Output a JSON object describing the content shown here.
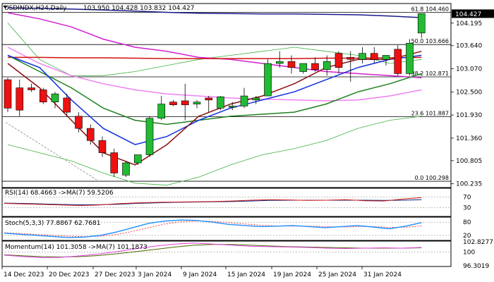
{
  "header": {
    "symbol": "USDINDX,H24,Daily",
    "ohlc": "103.950 104.428 103.832 104.427"
  },
  "price_scale": {
    "ticks": [
      "104.195",
      "103.640",
      "103.070",
      "102.500",
      "101.930",
      "101.360",
      "100.805",
      "100.235"
    ],
    "current_price": "104.427"
  },
  "fib_levels": [
    {
      "label": "61.8 104.460",
      "value": 104.46
    },
    {
      "label": "50.0 103.666",
      "value": 103.666
    },
    {
      "label": "38.2 102.871",
      "value": 102.871
    },
    {
      "label": "23.6 101.887",
      "value": 101.887
    },
    {
      "label": "0.0 100.298",
      "value": 100.298
    }
  ],
  "rsi": {
    "title": "RSI(14) 68.4663 ->MA(7) 59.5206",
    "ticks": [
      "70",
      "30"
    ],
    "color_rsi": "#d01818",
    "color_ma": "#0a2a80"
  },
  "stoch": {
    "title": "Stoch(5,3,3) 77.8867 62.7681",
    "ticks": [
      "80",
      "20"
    ],
    "color_k": "#1e90ff",
    "color_d": "#ff4040"
  },
  "momentum": {
    "title": "Momentum(14) 101.3058 ->MA(7) 101.1873",
    "ticks": [
      "102.8277",
      "100",
      "96.3019"
    ],
    "color_mom": "#e040e0",
    "color_ma": "#4a6a00"
  },
  "x_labels": [
    "14 Dec 2023",
    "20 Dec 2023",
    "27 Dec 2023",
    "3 Jan 2024",
    "9 Jan 2024",
    "15 Jan 2024",
    "19 Jan 2024",
    "25 Jan 2024",
    "31 Jan 2024"
  ],
  "colors": {
    "bull": "#22bb33",
    "bear": "#ee1111",
    "navy": "#1a1a8c",
    "magenta": "#d020d0",
    "red_ma": "#d01010",
    "darkred": "#8b1010",
    "blue": "#1030e0",
    "green": "#208020",
    "pink": "#f080f0",
    "bb_green": "#40b040"
  },
  "chart_data": {
    "type": "candlestick",
    "title": "USDINDX,H24,Daily",
    "ylim": [
      100.16,
      104.66
    ],
    "dates": [
      "12-13",
      "12-14",
      "12-15",
      "12-18",
      "12-19",
      "12-20",
      "12-21",
      "12-22",
      "12-26",
      "12-27",
      "12-28",
      "12-29",
      "01-02",
      "01-03",
      "01-04",
      "01-05",
      "01-08",
      "01-09",
      "01-10",
      "01-11",
      "01-12",
      "01-15",
      "01-16",
      "01-17",
      "01-18",
      "01-19",
      "01-22",
      "01-23",
      "01-24",
      "01-25",
      "01-26",
      "01-29",
      "01-30",
      "01-31",
      "02-01",
      "02-02"
    ],
    "candles": [
      {
        "o": 102.8,
        "h": 102.85,
        "l": 102.0,
        "c": 102.1
      },
      {
        "o": 102.6,
        "h": 102.8,
        "l": 101.9,
        "c": 102.05
      },
      {
        "o": 102.6,
        "h": 102.7,
        "l": 102.5,
        "c": 102.55
      },
      {
        "o": 102.55,
        "h": 102.6,
        "l": 102.2,
        "c": 102.25
      },
      {
        "o": 102.25,
        "h": 102.5,
        "l": 102.1,
        "c": 102.45
      },
      {
        "o": 102.35,
        "h": 102.45,
        "l": 101.9,
        "c": 102.0
      },
      {
        "o": 101.9,
        "h": 102.0,
        "l": 101.5,
        "c": 101.6
      },
      {
        "o": 101.6,
        "h": 101.7,
        "l": 101.2,
        "c": 101.3
      },
      {
        "o": 101.3,
        "h": 101.4,
        "l": 100.9,
        "c": 101.0
      },
      {
        "o": 101.0,
        "h": 101.1,
        "l": 100.4,
        "c": 100.5
      },
      {
        "o": 100.45,
        "h": 100.8,
        "l": 100.4,
        "c": 100.75
      },
      {
        "o": 100.75,
        "h": 100.95,
        "l": 100.7,
        "c": 100.95
      },
      {
        "o": 100.95,
        "h": 101.9,
        "l": 100.9,
        "c": 101.85
      },
      {
        "o": 101.85,
        "h": 102.4,
        "l": 101.8,
        "c": 102.2
      },
      {
        "o": 102.25,
        "h": 102.3,
        "l": 102.15,
        "c": 102.18
      },
      {
        "o": 102.28,
        "h": 102.7,
        "l": 101.8,
        "c": 102.18
      },
      {
        "o": 102.2,
        "h": 102.3,
        "l": 102.1,
        "c": 102.25
      },
      {
        "o": 102.35,
        "h": 102.4,
        "l": 102.0,
        "c": 102.3
      },
      {
        "o": 102.1,
        "h": 102.4,
        "l": 102.05,
        "c": 102.38
      },
      {
        "o": 102.12,
        "h": 102.25,
        "l": 102.05,
        "c": 102.15
      },
      {
        "o": 102.15,
        "h": 102.6,
        "l": 102.1,
        "c": 102.4
      },
      {
        "o": 102.3,
        "h": 102.4,
        "l": 102.2,
        "c": 102.35
      },
      {
        "o": 102.4,
        "h": 103.3,
        "l": 102.4,
        "c": 103.2
      },
      {
        "o": 103.2,
        "h": 103.5,
        "l": 103.1,
        "c": 103.25
      },
      {
        "o": 103.25,
        "h": 103.4,
        "l": 102.95,
        "c": 103.1
      },
      {
        "o": 103.0,
        "h": 103.2,
        "l": 102.95,
        "c": 103.2
      },
      {
        "o": 103.2,
        "h": 103.35,
        "l": 103.0,
        "c": 103.05
      },
      {
        "o": 103.05,
        "h": 103.4,
        "l": 102.9,
        "c": 103.25
      },
      {
        "o": 103.45,
        "h": 103.5,
        "l": 102.95,
        "c": 103.1
      },
      {
        "o": 103.35,
        "h": 103.5,
        "l": 102.75,
        "c": 103.3
      },
      {
        "o": 103.3,
        "h": 103.6,
        "l": 103.2,
        "c": 103.45
      },
      {
        "o": 103.45,
        "h": 103.6,
        "l": 103.2,
        "c": 103.3
      },
      {
        "o": 103.3,
        "h": 103.4,
        "l": 103.15,
        "c": 103.4
      },
      {
        "o": 103.55,
        "h": 103.65,
        "l": 102.9,
        "c": 102.95
      },
      {
        "o": 102.95,
        "h": 103.8,
        "l": 102.9,
        "c": 103.7
      },
      {
        "o": 103.95,
        "h": 104.43,
        "l": 103.83,
        "c": 104.43
      }
    ],
    "indicators": {
      "bb_upper": [
        104.2,
        103.3,
        102.9,
        102.9,
        103.0,
        103.15,
        103.3,
        103.4,
        103.5,
        103.6,
        103.5,
        103.4,
        103.2,
        103.3
      ],
      "bb_lower": [
        101.2,
        101.0,
        100.8,
        100.5,
        100.25,
        100.2,
        100.4,
        100.7,
        100.95,
        101.1,
        101.3,
        101.6,
        101.8,
        101.9
      ],
      "ma_blue": [
        103.4,
        103.1,
        102.3,
        101.6,
        101.2,
        101.4,
        101.8,
        102.1,
        102.3,
        102.5,
        102.8,
        103.1,
        103.3,
        103.4
      ],
      "ma_green": [
        103.4,
        103.0,
        102.6,
        102.1,
        101.8,
        101.7,
        101.8,
        101.9,
        101.95,
        102.0,
        102.2,
        102.5,
        102.7,
        102.95
      ],
      "ma_darkred": [
        103.2,
        102.6,
        101.8,
        101.0,
        100.7,
        101.2,
        101.9,
        102.2,
        102.4,
        102.7,
        103.1,
        103.3,
        103.3,
        103.5
      ],
      "ma_magenta": [
        104.45,
        104.3,
        104.1,
        103.8,
        103.6,
        103.5,
        103.35,
        103.3,
        103.2,
        103.1,
        103.0,
        102.95,
        102.9,
        102.85
      ],
      "ma_pink": [
        103.6,
        103.2,
        102.9,
        102.7,
        102.55,
        102.45,
        102.4,
        102.35,
        102.32,
        102.3,
        102.28,
        102.3,
        102.4,
        102.55
      ],
      "ma_navy": [
        104.57,
        104.56,
        104.54,
        104.52,
        104.49,
        104.46,
        104.44,
        104.43,
        104.42,
        104.42,
        104.41,
        104.4,
        104.37,
        104.33
      ],
      "ma_red": [
        103.35,
        103.35,
        103.34,
        103.34,
        103.33,
        103.32,
        103.32,
        103.32,
        103.32,
        103.32,
        103.33,
        103.33,
        103.34,
        103.35
      ]
    }
  }
}
